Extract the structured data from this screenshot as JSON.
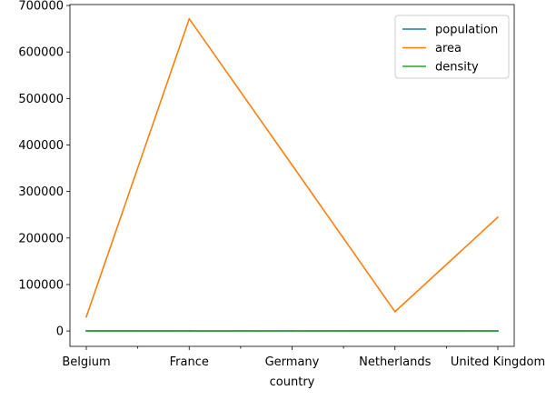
{
  "chart_data": {
    "type": "line",
    "title": "",
    "xlabel": "country",
    "ylabel": "",
    "categories": [
      "Belgium",
      "France",
      "Germany",
      "Netherlands",
      "United Kingdom"
    ],
    "xtick_labels": [
      "Belgium",
      "",
      "France",
      "",
      "Germany",
      "",
      "Netherlands",
      "",
      "United Kingdom"
    ],
    "ylim": [
      -33000,
      702000
    ],
    "yticks": [
      0,
      100000,
      200000,
      300000,
      400000,
      500000,
      600000,
      700000
    ],
    "ytick_labels": [
      "0",
      "100000",
      "200000",
      "300000",
      "400000",
      "500000",
      "600000",
      "700000"
    ],
    "grid": false,
    "legend_position": "top-right",
    "series": [
      {
        "name": "population",
        "color": "#1f77b4",
        "values": [
          11.3,
          64.3,
          81.3,
          16.9,
          64.9
        ]
      },
      {
        "name": "area",
        "color": "#ff7f0e",
        "values": [
          30510,
          671308,
          357050,
          41526,
          244820
        ]
      },
      {
        "name": "density",
        "color": "#2ca02c",
        "values": [
          370,
          96,
          228,
          408,
          265
        ]
      }
    ]
  }
}
